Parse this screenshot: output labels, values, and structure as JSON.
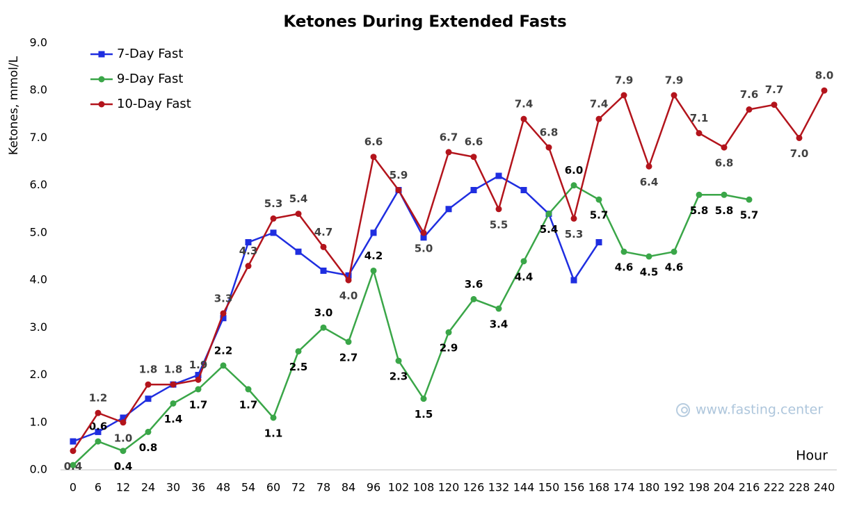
{
  "chart_data": {
    "type": "line",
    "title": "Ketones During Extended Fasts",
    "y_label": "Ketones, mmol/L",
    "x_label": "Hour",
    "watermark": "www.fasting.center",
    "categories": [
      0,
      6,
      12,
      24,
      30,
      36,
      48,
      54,
      60,
      72,
      78,
      84,
      96,
      102,
      108,
      120,
      126,
      132,
      144,
      150,
      156,
      168,
      174,
      180,
      192,
      198,
      204,
      216,
      222,
      228,
      240
    ],
    "ylim": [
      0,
      9
    ],
    "yticks": [
      {
        "value": 0,
        "label": "0.0"
      },
      {
        "value": 1,
        "label": "1.0"
      },
      {
        "value": 2,
        "label": "2.0"
      },
      {
        "value": 3,
        "label": "3.0"
      },
      {
        "value": 4,
        "label": "4.0"
      },
      {
        "value": 5,
        "label": "5.0"
      },
      {
        "value": 6,
        "label": "6.0"
      },
      {
        "value": 7,
        "label": "7.0"
      },
      {
        "value": 8,
        "label": "8.0"
      },
      {
        "value": 9,
        "label": "9.0"
      }
    ],
    "grid": false,
    "legend": "upper left",
    "series": [
      {
        "name": "7-Day Fast",
        "color": "#1f2ee0",
        "marker": "square",
        "values": [
          0.6,
          0.8,
          1.1,
          1.5,
          1.8,
          2.0,
          3.2,
          4.8,
          5.0,
          4.6,
          4.2,
          4.1,
          5.0,
          5.9,
          4.9,
          5.5,
          5.9,
          6.2,
          5.9,
          5.4,
          4.0,
          4.8,
          null,
          null,
          null,
          null,
          null,
          null,
          null,
          null,
          null
        ]
      },
      {
        "name": "9-Day Fast",
        "color": "#3aa648",
        "marker": "circle",
        "label_color": "#000000",
        "values": [
          0.1,
          0.6,
          0.4,
          0.8,
          1.4,
          1.7,
          2.2,
          1.7,
          1.1,
          2.5,
          3.0,
          2.7,
          4.2,
          2.3,
          1.5,
          2.9,
          3.6,
          3.4,
          4.4,
          5.4,
          6.0,
          5.7,
          4.6,
          4.5,
          4.6,
          5.8,
          5.8,
          5.7,
          null,
          null,
          null
        ],
        "value_labels": [
          null,
          "0.6",
          "0.4",
          "0.8",
          "1.4",
          "1.7",
          "2.2",
          "1.7",
          "1.1",
          "2.5",
          "3.0",
          "2.7",
          "4.2",
          "2.3",
          "1.5",
          "2.9",
          "3.6",
          "3.4",
          "4.4",
          "5.4",
          "6.0",
          "5.7",
          "4.6",
          "4.5",
          "4.6",
          "5.8",
          "5.8",
          "5.7",
          null,
          null,
          null
        ]
      },
      {
        "name": "10-Day Fast",
        "color": "#b3141c",
        "marker": "circle",
        "label_color": "#404040",
        "values": [
          0.4,
          1.2,
          1.0,
          1.8,
          1.8,
          1.9,
          3.3,
          4.3,
          5.3,
          5.4,
          4.7,
          4.0,
          6.6,
          5.9,
          5.0,
          6.7,
          6.6,
          5.5,
          7.4,
          6.8,
          5.3,
          7.4,
          7.9,
          6.4,
          7.9,
          7.1,
          6.8,
          7.6,
          7.7,
          7.0,
          8.0
        ],
        "value_labels": [
          "0.4",
          "1.2",
          "1.0",
          "1.8",
          "1.8",
          "1.9",
          "3.3",
          "4.3",
          "5.3",
          "5.4",
          "4.7",
          "4.0",
          "6.6",
          "5.9",
          "5.0",
          "6.7",
          "6.6",
          "5.5",
          "7.4",
          "6.8",
          "5.3",
          "7.4",
          "7.9",
          "6.4",
          "7.9",
          "7.1",
          "6.8",
          "7.6",
          "7.7",
          "7.0",
          "8.0"
        ]
      }
    ]
  }
}
